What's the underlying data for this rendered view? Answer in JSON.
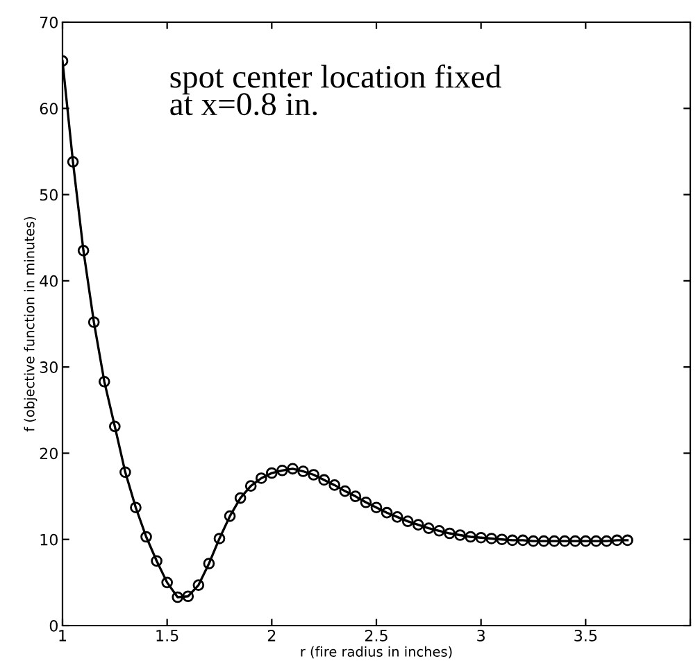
{
  "chart_data": {
    "type": "line",
    "xlabel": "r (fire radius in inches)",
    "ylabel": "f (objective function in minutes)",
    "annotations": [
      "spot center location fixed\nat x=0.8 in."
    ],
    "x": [
      1.0,
      1.05,
      1.1,
      1.15,
      1.2,
      1.25,
      1.3,
      1.35,
      1.4,
      1.45,
      1.5,
      1.55,
      1.6,
      1.65,
      1.7,
      1.75,
      1.8,
      1.85,
      1.9,
      1.95,
      2.0,
      2.05,
      2.1,
      2.15,
      2.2,
      2.25,
      2.3,
      2.35,
      2.4,
      2.45,
      2.5,
      2.55,
      2.6,
      2.65,
      2.7,
      2.75,
      2.8,
      2.85,
      2.9,
      2.95,
      3.0,
      3.05,
      3.1,
      3.15,
      3.2,
      3.25,
      3.3,
      3.35,
      3.4,
      3.45,
      3.5,
      3.55,
      3.6,
      3.65,
      3.7
    ],
    "series": [
      {
        "color": "#000000",
        "values": [
          65.5,
          53.8,
          43.5,
          35.2,
          28.3,
          23.1,
          17.8,
          13.7,
          10.3,
          7.5,
          5.0,
          3.3,
          3.4,
          4.7,
          7.2,
          10.1,
          12.7,
          14.8,
          16.2,
          17.1,
          17.7,
          18.0,
          18.2,
          17.9,
          17.5,
          16.9,
          16.3,
          15.6,
          15.0,
          14.3,
          13.7,
          13.1,
          12.6,
          12.1,
          11.7,
          11.3,
          11.0,
          10.7,
          10.5,
          10.3,
          10.2,
          10.1,
          10.0,
          9.9,
          9.9,
          9.8,
          9.8,
          9.8,
          9.8,
          9.8,
          9.8,
          9.8,
          9.8,
          9.9,
          9.9
        ]
      }
    ],
    "xlim": [
      1,
      4
    ],
    "ylim": [
      0,
      70
    ],
    "xticks": [
      1,
      1.5,
      2,
      2.5,
      3,
      3.5,
      {
        "value": 4,
        "label": null
      }
    ],
    "yticks": [
      0,
      10,
      20,
      30,
      40,
      50,
      60,
      70
    ],
    "marker": "circle",
    "line_style": "solid",
    "grid": false,
    "legend": false
  }
}
